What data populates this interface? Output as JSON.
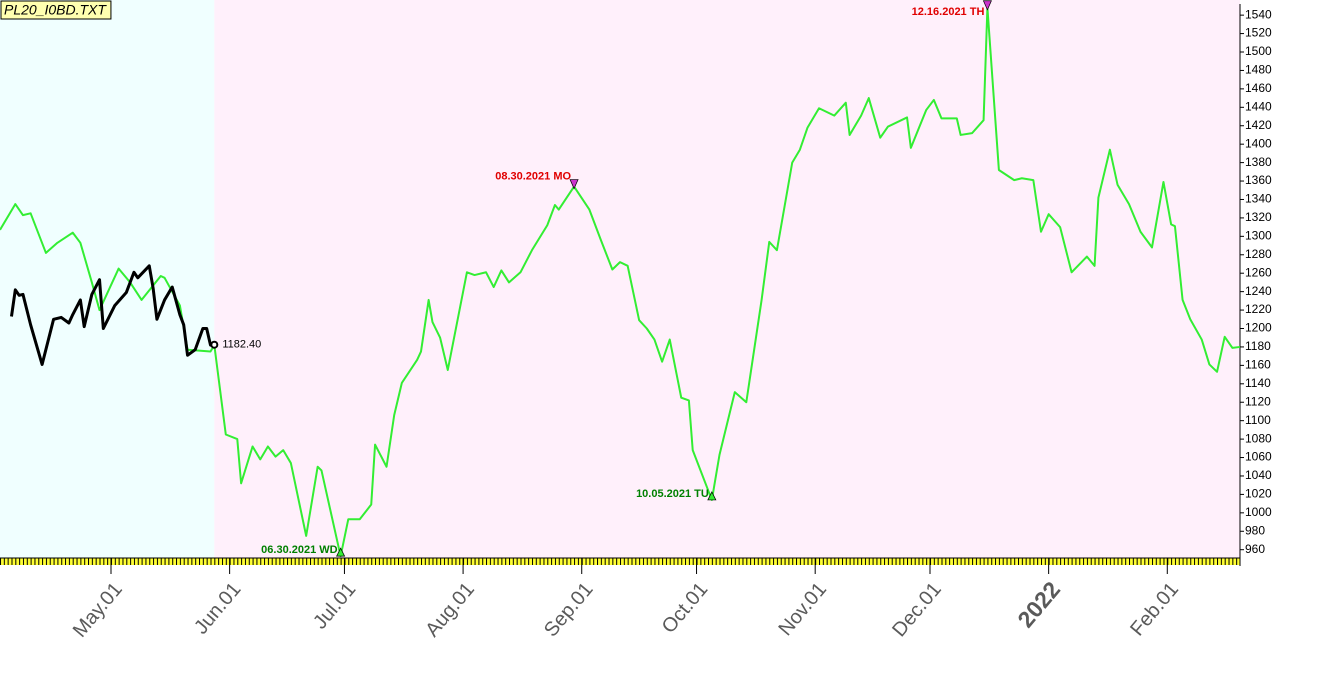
{
  "chart_data": {
    "type": "line",
    "title": "PL20_I0BD.TXT",
    "xlim": [
      "2021-04-02",
      "2022-02-20"
    ],
    "ylim": [
      951,
      1551
    ],
    "yticks": [
      960,
      980,
      1000,
      1020,
      1040,
      1060,
      1080,
      1100,
      1120,
      1140,
      1160,
      1180,
      1200,
      1220,
      1240,
      1260,
      1280,
      1300,
      1320,
      1340,
      1360,
      1380,
      1400,
      1420,
      1440,
      1460,
      1480,
      1500,
      1520,
      1540
    ],
    "xticks": [
      {
        "value": "2021-05-01",
        "label": "May.01"
      },
      {
        "value": "2021-06-01",
        "label": "Jun.01"
      },
      {
        "value": "2021-07-01",
        "label": "Jul.01"
      },
      {
        "value": "2021-08-01",
        "label": "Aug.01"
      },
      {
        "value": "2021-09-01",
        "label": "Sep.01"
      },
      {
        "value": "2021-10-01",
        "label": "Oct.01"
      },
      {
        "value": "2021-11-01",
        "label": "Nov.01"
      },
      {
        "value": "2021-12-01",
        "label": "Dec.01"
      },
      {
        "value": "2022-01-01",
        "label": "2022",
        "color": "#7a0000"
      },
      {
        "value": "2022-02-01",
        "label": "Feb.01"
      }
    ],
    "shading": [
      {
        "from": "2021-04-02",
        "to": "2021-05-28",
        "color": "#f0ffff"
      },
      {
        "from": "2021-05-28",
        "to": "2022-02-20",
        "color": "#fff0fb"
      }
    ],
    "series": [
      {
        "color": "#33ee33",
        "width": 2,
        "x": [
          "2021-04-02",
          "2021-04-06",
          "2021-04-08",
          "2021-04-10",
          "2021-04-14",
          "2021-04-17",
          "2021-04-21",
          "2021-04-23",
          "2021-04-26",
          "2021-04-28",
          "2021-05-03",
          "2021-05-06",
          "2021-05-09",
          "2021-05-14",
          "2021-05-15",
          "2021-05-19",
          "2021-05-21",
          "2021-05-27",
          "2021-05-28",
          "2021-05-31",
          "2021-06-03",
          "2021-06-04",
          "2021-06-07",
          "2021-06-09",
          "2021-06-11",
          "2021-06-13",
          "2021-06-15",
          "2021-06-17",
          "2021-06-21",
          "2021-06-24",
          "2021-06-25",
          "2021-06-30",
          "2021-07-02",
          "2021-07-05",
          "2021-07-08",
          "2021-07-09",
          "2021-07-12",
          "2021-07-14",
          "2021-07-16",
          "2021-07-20",
          "2021-07-21",
          "2021-07-23",
          "2021-07-24",
          "2021-07-26",
          "2021-07-28",
          "2021-08-02",
          "2021-08-04",
          "2021-08-07",
          "2021-08-09",
          "2021-08-11",
          "2021-08-13",
          "2021-08-16",
          "2021-08-19",
          "2021-08-23",
          "2021-08-25",
          "2021-08-26",
          "2021-08-30",
          "2021-09-03",
          "2021-09-06",
          "2021-09-09",
          "2021-09-11",
          "2021-09-13",
          "2021-09-16",
          "2021-09-18",
          "2021-09-20",
          "2021-09-22",
          "2021-09-24",
          "2021-09-27",
          "2021-09-29",
          "2021-09-30",
          "2021-10-05",
          "2021-10-07",
          "2021-10-11",
          "2021-10-14",
          "2021-10-18",
          "2021-10-20",
          "2021-10-22",
          "2021-10-26",
          "2021-10-28",
          "2021-10-30",
          "2021-11-02",
          "2021-11-06",
          "2021-11-09",
          "2021-11-10",
          "2021-11-13",
          "2021-11-15",
          "2021-11-18",
          "2021-11-20",
          "2021-11-25",
          "2021-11-26",
          "2021-11-30",
          "2021-12-02",
          "2021-12-04",
          "2021-12-08",
          "2021-12-09",
          "2021-12-12",
          "2021-12-15",
          "2021-12-16",
          "2021-12-19",
          "2021-12-23",
          "2021-12-25",
          "2021-12-28",
          "2021-12-30",
          "2022-01-01",
          "2022-01-04",
          "2022-01-07",
          "2022-01-11",
          "2022-01-13",
          "2022-01-14",
          "2022-01-17",
          "2022-01-19",
          "2022-01-22",
          "2022-01-25",
          "2022-01-28",
          "2022-01-31",
          "2022-02-02",
          "2022-02-03",
          "2022-02-05",
          "2022-02-07",
          "2022-02-10",
          "2022-02-12",
          "2022-02-14",
          "2022-02-16",
          "2022-02-18",
          "2022-02-20"
        ],
        "values": [
          1307,
          1335,
          1323,
          1325,
          1282,
          1293,
          1304,
          1293,
          1250,
          1220,
          1265,
          1250,
          1231,
          1257,
          1255,
          1225,
          1177,
          1175,
          1182,
          1085,
          1080,
          1032,
          1072,
          1058,
          1072,
          1061,
          1068,
          1054,
          975,
          1050,
          1046,
          953,
          993,
          993,
          1009,
          1074,
          1050,
          1106,
          1141,
          1166,
          1175,
          1231,
          1207,
          1190,
          1155,
          1261,
          1258,
          1261,
          1245,
          1263,
          1250,
          1261,
          1285,
          1312,
          1334,
          1329,
          1354,
          1329,
          1296,
          1264,
          1272,
          1268,
          1209,
          1200,
          1188,
          1164,
          1188,
          1125,
          1122,
          1068,
          1014,
          1063,
          1131,
          1120,
          1231,
          1294,
          1285,
          1380,
          1394,
          1418,
          1439,
          1431,
          1445,
          1410,
          1431,
          1450,
          1407,
          1419,
          1429,
          1396,
          1437,
          1448,
          1428,
          1428,
          1410,
          1412,
          1426,
          1548,
          1372,
          1361,
          1363,
          1361,
          1305,
          1324,
          1310,
          1261,
          1278,
          1268,
          1342,
          1394,
          1356,
          1335,
          1305,
          1288,
          1359,
          1313,
          1311,
          1231,
          1210,
          1188,
          1161,
          1153,
          1191,
          1179,
          1180
        ]
      },
      {
        "color": "#000000",
        "width": 3,
        "x": [
          "2021-04-05",
          "2021-04-06",
          "2021-04-07",
          "2021-04-08",
          "2021-04-10",
          "2021-04-13",
          "2021-04-16",
          "2021-04-18",
          "2021-04-20",
          "2021-04-21",
          "2021-04-23",
          "2021-04-24",
          "2021-04-26",
          "2021-04-28",
          "2021-04-29",
          "2021-05-02",
          "2021-05-05",
          "2021-05-07",
          "2021-05-08",
          "2021-05-11",
          "2021-05-12",
          "2021-05-13",
          "2021-05-15",
          "2021-05-17",
          "2021-05-19",
          "2021-05-20",
          "2021-05-21",
          "2021-05-23",
          "2021-05-25",
          "2021-05-26",
          "2021-05-27",
          "2021-05-28"
        ],
        "values": [
          1213,
          1242,
          1236,
          1237,
          1204,
          1161,
          1210,
          1212,
          1206,
          1215,
          1231,
          1202,
          1237,
          1253,
          1200,
          1225,
          1239,
          1261,
          1255,
          1268,
          1244,
          1210,
          1231,
          1245,
          1215,
          1204,
          1171,
          1177,
          1200,
          1200,
          1182,
          1182.4
        ],
        "value_labels": [
          null,
          null,
          null,
          null,
          null,
          null,
          null,
          null,
          null,
          null,
          null,
          null,
          null,
          null,
          null,
          null,
          null,
          null,
          null,
          null,
          null,
          null,
          null,
          null,
          null,
          null,
          null,
          null,
          null,
          null,
          null,
          "1182.40"
        ]
      }
    ],
    "annotations": [
      {
        "x": "2021-06-30",
        "y": 953,
        "text": "06.30.2021 WD",
        "color": "#008000",
        "marker": "up"
      },
      {
        "x": "2021-08-30",
        "y": 1354,
        "text": "08.30.2021 MO",
        "color": "#e00000",
        "marker": "down"
      },
      {
        "x": "2021-10-05",
        "y": 1014,
        "text": "10.05.2021 TU",
        "color": "#008000",
        "marker": "up"
      },
      {
        "x": "2021-12-16",
        "y": 1548,
        "text": "12.16.2021 TH",
        "color": "#e00000",
        "marker": "down"
      }
    ]
  }
}
